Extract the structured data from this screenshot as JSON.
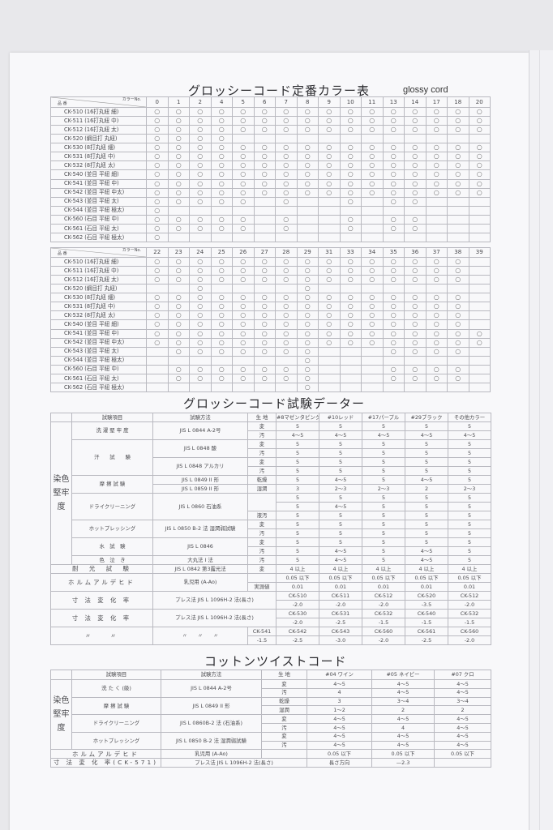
{
  "color_table": {
    "title": "グロッシーコード定番カラー表",
    "subtitle": "glossy cord",
    "header_product": "品 番",
    "header_color": "カラーNo.",
    "mark_symbol": "○",
    "products": [
      "CK-510 (16打丸紐 細)",
      "CK-511 (16打丸紐 中)",
      "CK-512 (16打丸紐 太)",
      "CK-520 (綱目打 丸紐)",
      "CK-530 (8打丸紐 細)",
      "CK-531 (8打丸紐 中)",
      "CK-532 (8打丸紐 太)",
      "CK-540 (並目 平紐 細)",
      "CK-541 (並目 平紐 中)",
      "CK-542 (並目 平紐 中太)",
      "CK-543 (並目 平紐 太)",
      "CK-544 (並目 平紐 極太)",
      "CK-560 (石目 平紐 中)",
      "CK-561 (石目 平紐 太)",
      "CK-562 (石目 平紐 極太)"
    ],
    "part1": {
      "colors": [
        "0",
        "1",
        "2",
        "4",
        "5",
        "6",
        "7",
        "8",
        "9",
        "10",
        "11",
        "13",
        "14",
        "17",
        "18",
        "20"
      ],
      "marks": [
        "1111111111111111",
        "1111111111111111",
        "1111111111111111",
        "1111000000000000",
        "1111111111111111",
        "1111111111111111",
        "1111111111111111",
        "1111111111111111",
        "1111111111111111",
        "1111111111111111",
        "1111101001011000",
        "1000000000000000",
        "1111101001011000",
        "1111101001011000",
        "1000000000000000"
      ]
    },
    "part2": {
      "colors": [
        "22",
        "23",
        "24",
        "25",
        "26",
        "27",
        "28",
        "29",
        "31",
        "33",
        "34",
        "35",
        "36",
        "37",
        "38",
        "39"
      ],
      "marks": [
        "1111111111111110",
        "1111111111111110",
        "1111111111111110",
        "0010000100000000",
        "1111111111111110",
        "1111111111111110",
        "1111111111111110",
        "1111111111111110",
        "1111111111111111",
        "1111111111111111",
        "0111111100011110",
        "0000000100000000",
        "0111111100011110",
        "0111111100011110",
        "0000000100000000"
      ]
    }
  },
  "test_table": {
    "title": "グロッシーコード試験データー",
    "vertical_label": "染色堅牢度",
    "headers": [
      "試験項目",
      "試験方法",
      "生 地",
      "#8マゼンタピンク",
      "#10レッド",
      "#17パープル",
      "#29ブラック",
      "その他カラー"
    ],
    "rows": [
      {
        "item": "洗 濯 堅 牢 度",
        "method": "JIS L 0844 A-2号",
        "sub": "変",
        "v": [
          "5",
          "5",
          "5",
          "5",
          "5"
        ]
      },
      {
        "sub": "汚",
        "v": [
          "4〜5",
          "4〜5",
          "4〜5",
          "4〜5",
          "4〜5"
        ]
      },
      {
        "item": "汗　　試　　験",
        "method": "JIS L 0848 酸",
        "sub": "変",
        "v": [
          "5",
          "5",
          "5",
          "5",
          "5"
        ]
      },
      {
        "sub": "汚",
        "v": [
          "5",
          "5",
          "5",
          "5",
          "5"
        ]
      },
      {
        "method": "JIS L 0848 アルカリ",
        "sub": "変",
        "v": [
          "5",
          "5",
          "5",
          "5",
          "5"
        ]
      },
      {
        "sub": "汚",
        "v": [
          "5",
          "5",
          "5",
          "5",
          "5"
        ]
      },
      {
        "item": "摩 擦 試 験",
        "method": "JIS L 0849 II 形",
        "sub": "乾燥",
        "v": [
          "5",
          "4〜5",
          "5",
          "4〜5",
          "5"
        ]
      },
      {
        "method": "JIS L 0859 II 形",
        "sub": "湿潤",
        "v": [
          "3",
          "2〜3",
          "2〜3",
          "2",
          "2〜3"
        ]
      },
      {
        "item": "ドライクリーニング",
        "method": "JIS L 0860 石油系",
        "sub": "",
        "v": [
          "5",
          "5",
          "5",
          "5",
          "5"
        ]
      },
      {
        "v": [
          "5",
          "4〜5",
          "5",
          "5",
          "5"
        ]
      },
      {
        "sub": "液汚",
        "v": [
          "5",
          "5",
          "5",
          "5",
          "5"
        ]
      },
      {
        "item": "ホットプレッシング",
        "method": "JIS L 0850 B-2 法 湿潤弱試験",
        "sub": "変",
        "v": [
          "5",
          "5",
          "5",
          "5",
          "5"
        ]
      },
      {
        "sub": "汚",
        "v": [
          "5",
          "5",
          "5",
          "5",
          "5"
        ]
      },
      {
        "item": "水　試　験",
        "method": "JIS L 0846",
        "sub": "変",
        "v": [
          "5",
          "5",
          "5",
          "5",
          "5"
        ]
      },
      {
        "sub": "汚",
        "v": [
          "5",
          "4〜5",
          "5",
          "4〜5",
          "5"
        ]
      },
      {
        "item": "色　泣　き",
        "method": "大丸法 I 法",
        "sub": "汚",
        "v": [
          "5",
          "4〜5",
          "5",
          "4〜5",
          "5"
        ]
      },
      {
        "item": "耐　光　試　験",
        "method": "JIS L 0842 第3露光法",
        "sub": "変",
        "v": [
          "4 以上",
          "4 以上",
          "4 以上",
          "4 以上",
          "4 以上"
        ]
      },
      {
        "item": "ホルムアルデヒド",
        "method": "乳児用 (A-Ao)",
        "sub": "",
        "v": [
          "0.05 以下",
          "0.05 以下",
          "0.05 以下",
          "0.05 以下",
          "0.05 以下"
        ]
      },
      {
        "sub": "実測値",
        "v": [
          "0.01",
          "0.01",
          "0.01",
          "0.01",
          "0.01"
        ]
      },
      {
        "item": "寸 法 変 化 率",
        "method": "プレス法 JIS L 1096H-2 法(長さ)",
        "v": [
          "CK-510",
          "CK-511",
          "CK-512",
          "CK-520",
          "CK-512"
        ]
      },
      {
        "v": [
          "-2.0",
          "-2.0",
          "-2.0",
          "-3.5",
          "-2.0"
        ]
      },
      {
        "item": "寸 法 変 化 率",
        "method": "プレス法 JIS L 1096H-2 法(長さ)",
        "v": [
          "CK-530",
          "CK-531",
          "CK-532",
          "CK-540",
          "CK-532"
        ]
      },
      {
        "v": [
          "-2.0",
          "-2.5",
          "-1.5",
          "-1.5",
          "-1.5"
        ]
      },
      {
        "item": "〃　　〃",
        "method": "〃　　〃　　〃",
        "sub": "CK-541",
        "v": [
          "CK-542",
          "CK-543",
          "CK-560",
          "CK-561",
          "CK-560"
        ]
      },
      {
        "sub": "-1.5",
        "v": [
          "-2.5",
          "-3.0",
          "-2.0",
          "-2.5",
          "-2.0"
        ]
      }
    ]
  },
  "cotton_table": {
    "title": "コットンツイストコード",
    "vertical_label": "染色堅牢度",
    "headers": [
      "試験項目",
      "試験方法",
      "生 地",
      "#04 ワイン",
      "#05 ネイビー",
      "#07 クロ"
    ],
    "rows": [
      {
        "item": "洗 た く (級)",
        "method": "JIS L 0844 A-2号",
        "sub": "変",
        "v": [
          "4〜5",
          "4〜5",
          "4〜5"
        ]
      },
      {
        "sub": "汚",
        "v": [
          "4",
          "4〜5",
          "4〜5"
        ]
      },
      {
        "item": "摩 擦 試 験",
        "method": "JIS L 0849 II 形",
        "sub": "乾燥",
        "v": [
          "3",
          "3〜4",
          "3〜4"
        ]
      },
      {
        "sub": "湿潤",
        "v": [
          "1〜2",
          "2",
          "2"
        ]
      },
      {
        "item": "ドライクリーニング",
        "method": "JIS L 0860B-2 法 (石油系)",
        "sub": "変",
        "v": [
          "4〜5",
          "4〜5",
          "4〜5"
        ]
      },
      {
        "sub": "汚",
        "v": [
          "4〜5",
          "4",
          "4〜5"
        ]
      },
      {
        "item": "ホットプレッシング",
        "method": "JIS L 0850 B-2 法 湿潤弱試験",
        "sub": "変",
        "v": [
          "4〜5",
          "4〜5",
          "4〜5"
        ]
      },
      {
        "sub": "汚",
        "v": [
          "4〜5",
          "4〜5",
          "4〜5"
        ]
      },
      {
        "item": "ホルムアルデヒド",
        "method": "乳児用 (A-Ao)",
        "sub": "",
        "v": [
          "0.05 以下",
          "0.05 以下",
          "0.05 以下"
        ]
      },
      {
        "item": "寸 法 変 化 率(CK-571)",
        "method": "プレス法 JIS L 1096H-2 法(長さ)",
        "v": [
          "長さ方向",
          "—2.3",
          ""
        ]
      }
    ]
  }
}
